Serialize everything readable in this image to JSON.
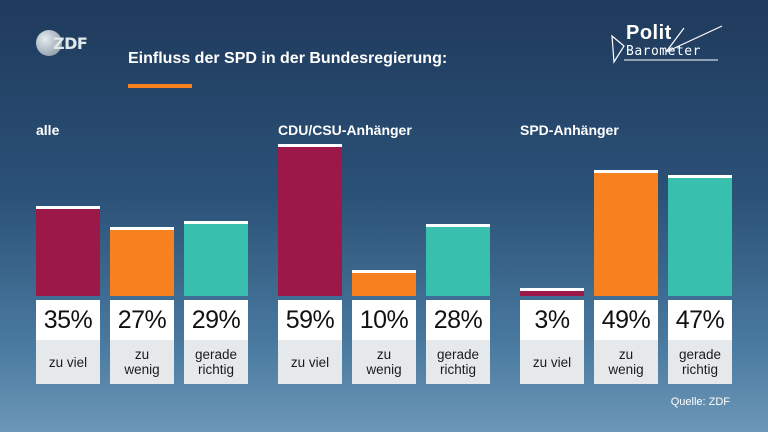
{
  "brand": {
    "logo_text": "ZDF",
    "badge_line1": "Polit",
    "badge_line2": "Barometer"
  },
  "colors": {
    "zu_viel": "#9b1848",
    "zu_wenig": "#f6811e",
    "gerade_richtig": "#38bfae",
    "title_underline": "#f6811e"
  },
  "chart_data": {
    "type": "bar",
    "title": "Einfluss der SPD in der Bundesregierung:",
    "categories": [
      "zu viel",
      "zu\nwenig",
      "gerade\nrichtig"
    ],
    "groups": [
      {
        "name": "alle",
        "values": [
          35,
          27,
          29
        ],
        "labels": [
          "35%",
          "27%",
          "29%"
        ]
      },
      {
        "name": "CDU/CSU-Anhänger",
        "values": [
          59,
          10,
          28
        ],
        "labels": [
          "59%",
          "10%",
          "28%"
        ]
      },
      {
        "name": "SPD-Anhänger",
        "values": [
          3,
          49,
          47
        ],
        "labels": [
          "3%",
          "49%",
          "47%"
        ]
      }
    ],
    "ylim": [
      0,
      100
    ],
    "source": "Quelle: ZDF"
  }
}
